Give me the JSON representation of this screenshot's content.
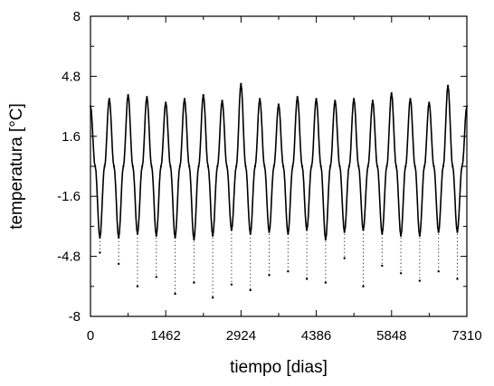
{
  "chart_data": {
    "type": "scatter",
    "title": "",
    "xlabel": "tiempo [dias]",
    "ylabel": "temperatura [°C]",
    "xlim": [
      0,
      7310
    ],
    "ylim": [
      -8,
      8
    ],
    "x_ticks": [
      0,
      1462,
      2924,
      4386,
      5848,
      7310
    ],
    "x_tick_labels": [
      "0",
      "1462",
      "2924",
      "4386",
      "5848",
      "7310"
    ],
    "y_ticks": [
      8,
      4.8,
      1.6,
      -1.6,
      -4.8,
      -8
    ],
    "y_tick_labels": [
      "8",
      "4.8",
      "1.6",
      "-1.6",
      "-4.8",
      "-8"
    ],
    "grid": false,
    "legend": "none",
    "series": [
      {
        "style": "line",
        "color": "#000000",
        "x": [
          0,
          91,
          183,
          274,
          365,
          456,
          548,
          639,
          731,
          822,
          913,
          1005,
          1096,
          1187,
          1279,
          1370,
          1462,
          1553,
          1644,
          1736,
          1827,
          1918,
          2010,
          2101,
          2192,
          2284,
          2375,
          2466,
          2558,
          2649,
          2740,
          2832,
          2923,
          3014,
          3106,
          3197,
          3289,
          3380,
          3471,
          3563,
          3654,
          3745,
          3837,
          3928,
          4019,
          4111,
          4202,
          4293,
          4385,
          4476,
          4567,
          4659,
          4750,
          4841,
          4933,
          5024,
          5116,
          5207,
          5298,
          5390,
          5481,
          5572,
          5664,
          5755,
          5846,
          5938,
          6029,
          6120,
          6212,
          6303,
          6394,
          6486,
          6577,
          6669,
          6760,
          6851,
          6943,
          7034,
          7125,
          7217,
          7310
        ],
        "y": [
          3.2,
          0.0,
          -3.8,
          0.0,
          3.6,
          0.0,
          -3.8,
          0.0,
          3.8,
          0.0,
          -3.6,
          0.0,
          3.7,
          0.0,
          -3.7,
          0.0,
          3.4,
          0.0,
          -3.8,
          0.0,
          3.6,
          0.0,
          -3.9,
          0.0,
          3.8,
          0.0,
          -3.7,
          0.0,
          3.5,
          0.0,
          -3.4,
          0.0,
          4.4,
          0.0,
          -3.6,
          0.0,
          3.6,
          0.0,
          -3.5,
          0.0,
          3.3,
          0.0,
          -3.6,
          0.0,
          3.7,
          0.0,
          -3.4,
          0.0,
          3.6,
          0.0,
          -3.9,
          0.0,
          3.5,
          0.0,
          -3.5,
          0.0,
          3.6,
          0.0,
          -3.4,
          0.0,
          3.5,
          0.0,
          -3.6,
          0.0,
          3.9,
          0.0,
          -3.7,
          0.0,
          3.6,
          0.0,
          -3.7,
          0.0,
          3.4,
          0.0,
          -3.5,
          0.0,
          4.3,
          0.0,
          -3.5,
          0.0,
          3.2
        ]
      },
      {
        "style": "points",
        "color": "#000000",
        "x": [
          183,
          548,
          913,
          1279,
          1644,
          2010,
          2375,
          2740,
          3106,
          3471,
          3837,
          4202,
          4567,
          4933,
          5298,
          5664,
          6029,
          6394,
          6760,
          7125
        ],
        "y": [
          -4.6,
          -5.2,
          -6.4,
          -5.9,
          -6.8,
          -6.2,
          -7.0,
          -6.3,
          -6.6,
          -5.8,
          -5.6,
          -6.0,
          -6.2,
          -4.9,
          -6.4,
          -5.3,
          -5.7,
          -6.1,
          -5.6,
          -6.0
        ]
      }
    ]
  }
}
